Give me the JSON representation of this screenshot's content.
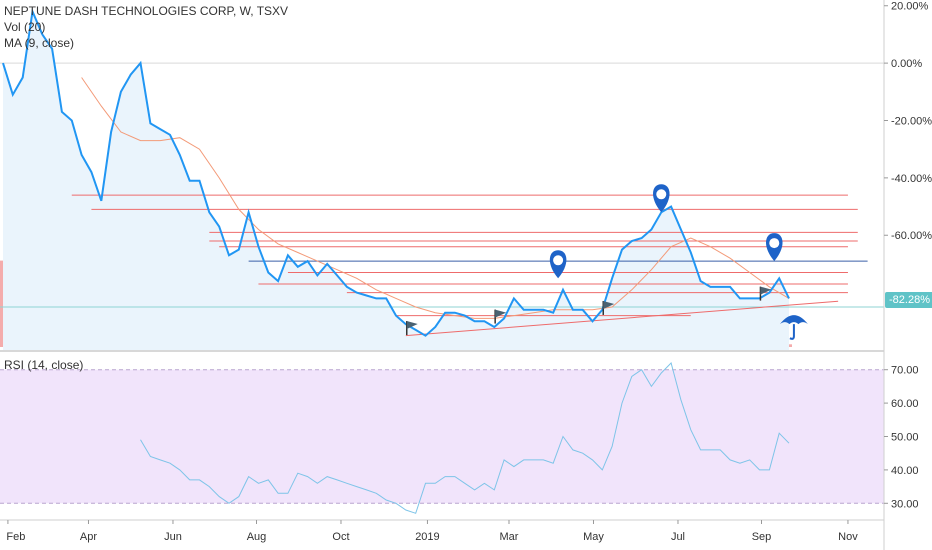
{
  "header": {
    "symbol_line": "NEPTUNE DASH TECHNOLOGIES CORP, W, TSXV",
    "vol_label": "Vol (20)",
    "ma_label": "MA (9, close)"
  },
  "rsi_label": "RSI (14, close)",
  "price_badge": "-82.28%",
  "colors": {
    "price_line": "#2196f3",
    "price_fill": "#eaf4fc",
    "ma_line": "#f39a78",
    "trend_lines": "#ee6b6b",
    "blue_hline": "#3a5fa8",
    "cyan_hline": "#8fd3d3",
    "volume_up": "#8ed1d0",
    "volume_down": "#f3a3a3",
    "rsi_band": "#f1e4fb",
    "rsi_line": "#7ec4e8",
    "marker": "#1e63c8"
  },
  "chart_data": [
    {
      "type": "line",
      "ylim": [
        -100,
        22
      ],
      "y_ticks": [
        {
          "value": 20,
          "label": "20.00%"
        },
        {
          "value": 0,
          "label": "0.00%"
        },
        {
          "value": -20,
          "label": "-20.00%"
        },
        {
          "value": -40,
          "label": "-40.00%"
        },
        {
          "value": -60,
          "label": "-60.00%"
        }
      ],
      "x_ticks": [
        "Feb",
        "Apr",
        "Jun",
        "Aug",
        "Oct",
        "2019",
        "Mar",
        "May",
        "Jul",
        "Sep",
        "Nov"
      ],
      "x_tick_positions": [
        0.5,
        8.7,
        17.3,
        25.8,
        34.4,
        43.2,
        51.5,
        60.1,
        68.7,
        77.2,
        86
      ],
      "series": [
        {
          "x": [
            0,
            1,
            2,
            3,
            4,
            5,
            6,
            7,
            8,
            9,
            10,
            11,
            12,
            13,
            14,
            15,
            16,
            17,
            18,
            19,
            20,
            21,
            22,
            23,
            24,
            25,
            26,
            27,
            28,
            29,
            30,
            31,
            32,
            33,
            34,
            35,
            36,
            37,
            38,
            39,
            40,
            41,
            42,
            43,
            44,
            45,
            46,
            47,
            48,
            49,
            50,
            51,
            52,
            53,
            54,
            55,
            56,
            57,
            58,
            59,
            60,
            61,
            62,
            63,
            64,
            65,
            66,
            67,
            68,
            69,
            70,
            71,
            72,
            73,
            74,
            75,
            76,
            77,
            78,
            79,
            80
          ],
          "values": [
            0,
            -11,
            -5,
            18,
            10,
            5,
            -17,
            -20,
            -32,
            -38,
            -48,
            -24,
            -10,
            -4,
            0,
            -21,
            -23,
            -25,
            -32,
            -41,
            -41,
            -52,
            -57,
            -67,
            -65,
            -52,
            -64,
            -73,
            -76,
            -67,
            -71,
            -69,
            -74,
            -70,
            -74,
            -78,
            -80,
            -81,
            -82,
            -82,
            -88,
            -91,
            -93,
            -95,
            -92,
            -87,
            -87,
            -88,
            -90,
            -90,
            -92,
            -89,
            -82,
            -86,
            -86,
            -86,
            -87,
            -79,
            -86,
            -86,
            -90,
            -86,
            -75,
            -65,
            -62,
            -61,
            -58,
            -52,
            -50,
            -58,
            -66,
            -76,
            -78,
            -78,
            -78,
            -82,
            -82,
            -82,
            -80,
            -75,
            -82
          ]
        },
        {
          "x": [
            8,
            10,
            12,
            14,
            16,
            18,
            20,
            22,
            24,
            26,
            28,
            30,
            32,
            34,
            36,
            38,
            40,
            42,
            44,
            46,
            48,
            50,
            52,
            54,
            56,
            58,
            60,
            62,
            64,
            66,
            68,
            70,
            72,
            74,
            76,
            78,
            80
          ],
          "values": [
            -5,
            -15,
            -24,
            -27,
            -27,
            -26,
            -30,
            -40,
            -51,
            -58,
            -63,
            -66,
            -69,
            -72,
            -75,
            -79,
            -82,
            -85,
            -87,
            -88,
            -89,
            -89,
            -88,
            -87,
            -86,
            -86,
            -86,
            -85,
            -79,
            -72,
            -64,
            -61,
            -64,
            -68,
            -73,
            -78,
            -82
          ]
        }
      ]
    },
    {
      "type": "bar",
      "values": [
        64,
        8,
        6,
        3,
        5,
        4,
        2,
        4,
        3,
        2,
        6,
        4,
        5,
        9,
        14,
        12,
        3,
        4,
        2,
        3,
        3,
        2,
        4,
        3,
        5,
        3,
        2,
        2,
        3,
        2,
        2,
        4,
        2,
        3,
        4,
        2,
        2,
        3,
        2,
        1,
        2,
        2,
        2,
        3,
        3,
        2,
        1,
        2,
        2,
        3,
        2,
        1,
        2,
        5,
        3,
        1,
        1,
        2,
        2,
        3,
        3,
        1,
        15,
        28,
        12,
        3,
        10,
        4,
        8,
        4,
        2,
        3,
        4,
        3,
        2,
        3,
        3,
        2,
        3,
        4,
        2
      ]
    },
    {
      "type": "line",
      "ylim": [
        25,
        75
      ],
      "y_ticks": [
        {
          "value": 70,
          "label": "70.00"
        },
        {
          "value": 60,
          "label": "60.00"
        },
        {
          "value": 50,
          "label": "50.00"
        },
        {
          "value": 40,
          "label": "40.00"
        },
        {
          "value": 30,
          "label": "30.00"
        }
      ],
      "band": [
        30,
        70
      ],
      "series": [
        {
          "x": [
            14,
            15,
            16,
            17,
            18,
            19,
            20,
            21,
            22,
            23,
            24,
            25,
            26,
            27,
            28,
            29,
            30,
            31,
            32,
            33,
            34,
            35,
            36,
            37,
            38,
            39,
            40,
            41,
            42,
            43,
            44,
            45,
            46,
            47,
            48,
            49,
            50,
            51,
            52,
            53,
            54,
            55,
            56,
            57,
            58,
            59,
            60,
            61,
            62,
            63,
            64,
            65,
            66,
            67,
            68,
            69,
            70,
            71,
            72,
            73,
            74,
            75,
            76,
            77,
            78,
            79,
            80
          ],
          "values": [
            49,
            44,
            43,
            42,
            40,
            37,
            37,
            35,
            32,
            30,
            32,
            38,
            36,
            37,
            33,
            33,
            39,
            38,
            36,
            38,
            37,
            36,
            35,
            34,
            33,
            31,
            30,
            28,
            27,
            36,
            36,
            38,
            38,
            36,
            34,
            36,
            34,
            43,
            41,
            43,
            43,
            43,
            42,
            50,
            46,
            45,
            43,
            40,
            47,
            60,
            68,
            70,
            65,
            69,
            72,
            61,
            52,
            46,
            46,
            46,
            43,
            42,
            43,
            40,
            40,
            51,
            48
          ]
        }
      ]
    }
  ]
}
